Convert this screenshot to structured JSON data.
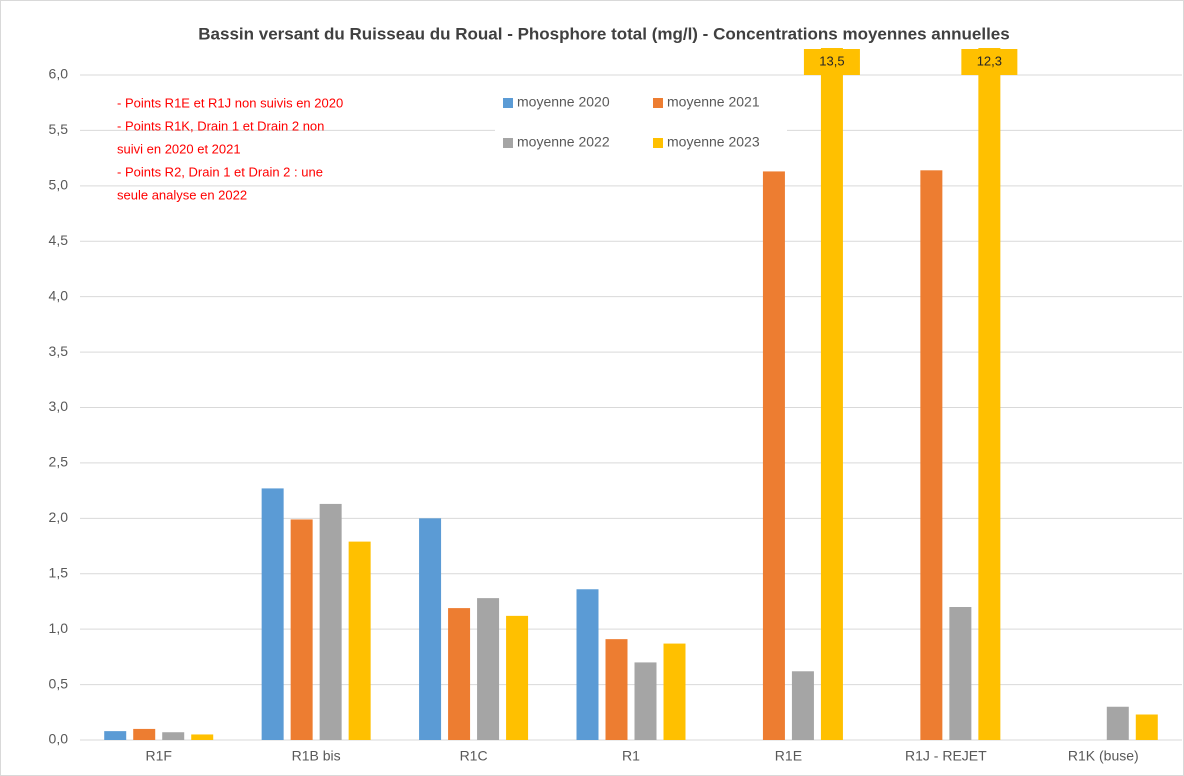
{
  "chart_data": {
    "type": "bar",
    "title": "Bassin versant du Ruisseau du Roual - Phosphore total (mg/l) - Concentrations moyennes annuelles",
    "categories": [
      "R1F",
      "R1B bis",
      "R1C",
      "R1",
      "R1E",
      "R1J - REJET",
      "R1K (buse)"
    ],
    "series": [
      {
        "name": "moyenne 2020",
        "color": "#5b9bd5",
        "values": [
          0.08,
          2.27,
          2.0,
          1.36,
          null,
          null,
          null
        ]
      },
      {
        "name": "moyenne 2021",
        "color": "#ed7d31",
        "values": [
          0.1,
          1.99,
          1.19,
          0.91,
          5.13,
          5.14,
          null
        ]
      },
      {
        "name": "moyenne 2022",
        "color": "#a5a5a5",
        "values": [
          0.07,
          2.13,
          1.28,
          0.7,
          0.62,
          1.2,
          0.3
        ]
      },
      {
        "name": "moyenne 2023",
        "color": "#ffc000",
        "values": [
          0.05,
          1.79,
          1.12,
          0.87,
          13.5,
          12.3,
          0.23
        ],
        "value_labels": [
          null,
          null,
          null,
          null,
          "13,5",
          "12,3",
          null
        ]
      }
    ],
    "ylim": [
      0,
      6
    ],
    "yticks": [
      {
        "value": 0,
        "label": "0,0"
      },
      {
        "value": 0.5,
        "label": "0,5"
      },
      {
        "value": 1,
        "label": "1,0"
      },
      {
        "value": 1.5,
        "label": "1,5"
      },
      {
        "value": 2,
        "label": "2,0"
      },
      {
        "value": 2.5,
        "label": "2,5"
      },
      {
        "value": 3,
        "label": "3,0"
      },
      {
        "value": 3.5,
        "label": "3,5"
      },
      {
        "value": 4,
        "label": "4,0"
      },
      {
        "value": 4.5,
        "label": "4,5"
      },
      {
        "value": 5,
        "label": "5,0"
      },
      {
        "value": 5.5,
        "label": "5,5"
      },
      {
        "value": 6,
        "label": "6,0"
      }
    ],
    "grid": true,
    "annotation": [
      "- Points R1E et R1J non suivis en 2020",
      "- Points R1K, Drain 1 et Drain 2 non",
      "suivi en 2020 et 2021",
      "- Points R2, Drain 1 et Drain 2 : une",
      "seule analyse en 2022"
    ]
  }
}
